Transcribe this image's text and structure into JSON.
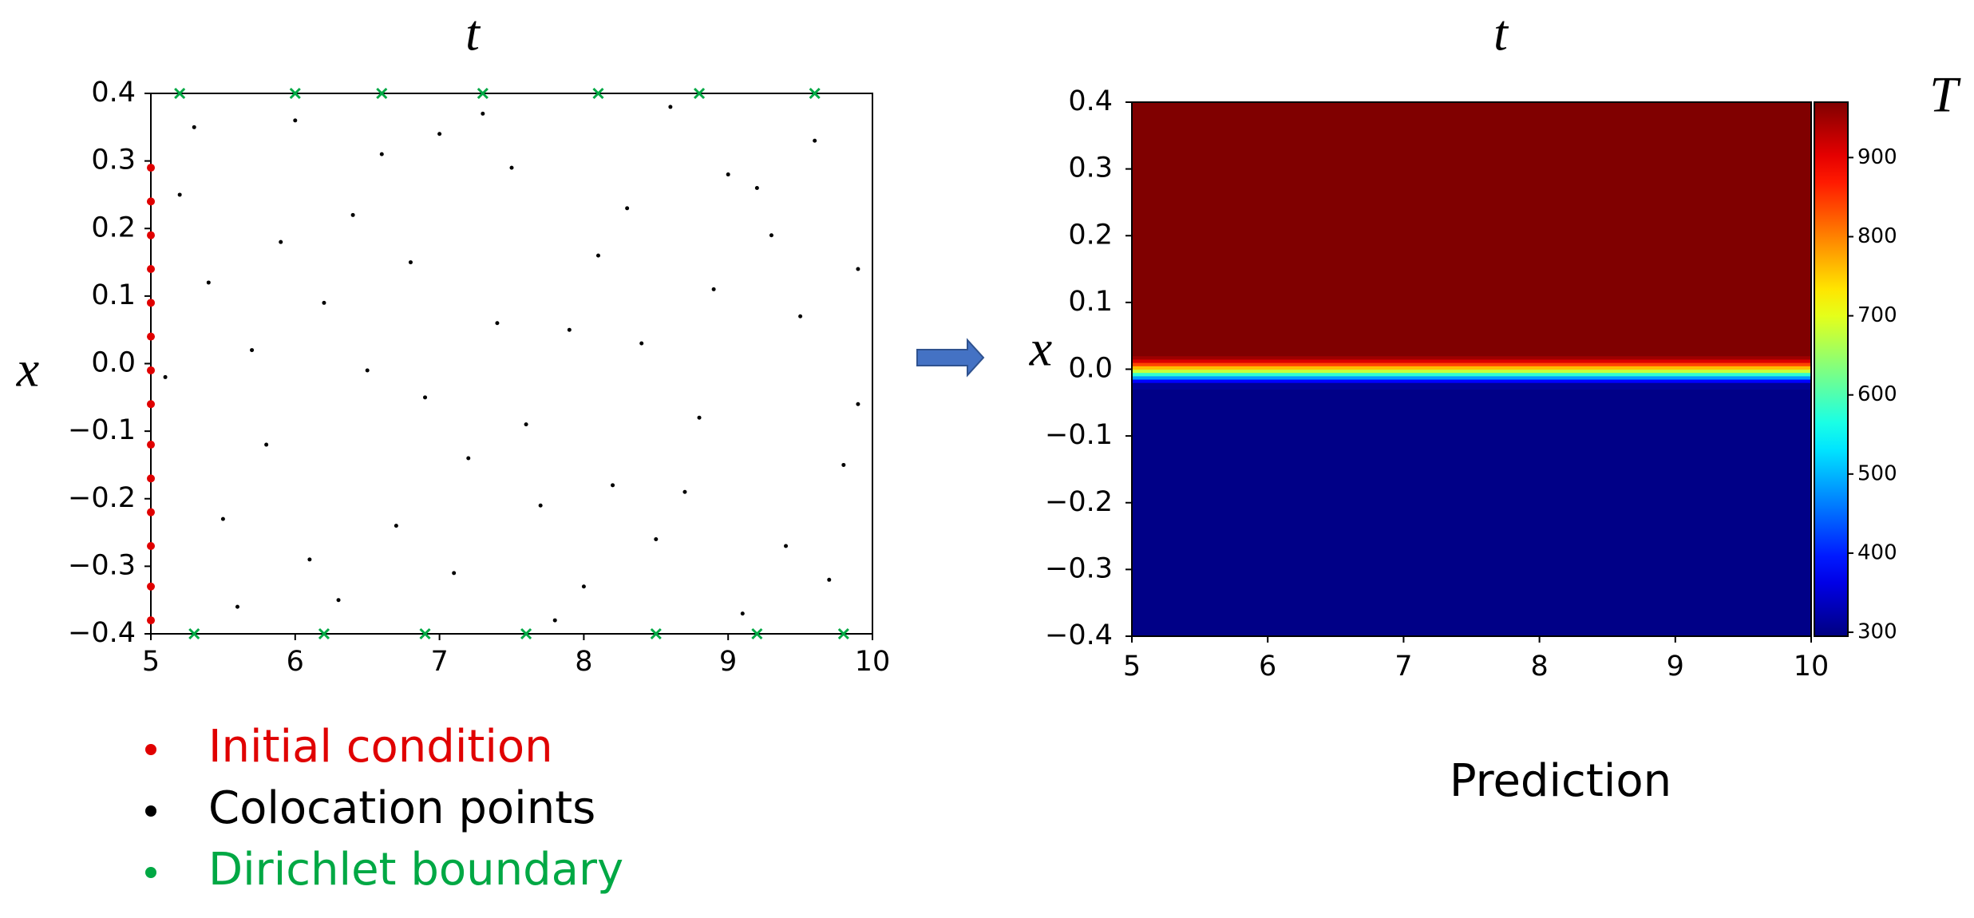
{
  "chart_data": [
    {
      "type": "scatter",
      "xlabel": "t",
      "ylabel": "x",
      "xlim": [
        5,
        10
      ],
      "ylim": [
        -0.4,
        0.4
      ],
      "xticks": [
        5,
        6,
        7,
        8,
        9,
        10
      ],
      "yticks": [
        {
          "value": -0.4,
          "label": "−0.4"
        },
        {
          "value": -0.3,
          "label": "−0.3"
        },
        {
          "value": -0.2,
          "label": "−0.2"
        },
        {
          "value": -0.1,
          "label": "−0.1"
        },
        {
          "value": 0,
          "label": "0.0"
        },
        0.1,
        0.2,
        0.3,
        0.4
      ],
      "series": [
        {
          "name": "Initial condition",
          "color": "#e00000",
          "marker": "o",
          "x": [
            5,
            5,
            5,
            5,
            5,
            5,
            5,
            5,
            5,
            5,
            5,
            5,
            5,
            5
          ],
          "values": [
            -0.38,
            -0.33,
            -0.27,
            -0.22,
            -0.17,
            -0.12,
            -0.06,
            -0.01,
            0.04,
            0.09,
            0.14,
            0.19,
            0.24,
            0.29
          ]
        },
        {
          "name": "Colocation points",
          "color": "#000000",
          "marker": "o",
          "x": [
            5.3,
            5.8,
            6.4,
            7.1,
            7.9,
            8.6,
            9.4,
            9.9,
            5.6,
            6.2,
            6.9,
            7.5,
            8.2,
            8.9,
            9.6,
            5.1,
            5.9,
            6.7,
            7.3,
            8.0,
            8.8,
            9.2,
            9.8,
            5.4,
            6.1,
            6.6,
            7.7,
            8.4,
            9.1,
            9.5,
            5.2,
            6.0,
            6.8,
            7.2,
            7.8,
            8.5,
            9.3,
            9.7,
            5.7,
            6.3,
            7.0,
            7.6,
            8.3,
            8.7,
            9.0,
            5.5,
            6.5,
            7.4,
            8.1,
            9.9
          ],
          "values": [
            0.35,
            -0.12,
            0.22,
            -0.31,
            0.05,
            0.38,
            -0.27,
            0.14,
            -0.36,
            0.09,
            -0.05,
            0.29,
            -0.18,
            0.11,
            0.33,
            -0.02,
            0.18,
            -0.24,
            0.37,
            -0.33,
            -0.08,
            0.26,
            -0.15,
            0.12,
            -0.29,
            0.31,
            -0.21,
            0.03,
            -0.37,
            0.07,
            0.25,
            0.36,
            0.15,
            -0.14,
            -0.38,
            -0.26,
            0.19,
            -0.32,
            0.02,
            -0.35,
            0.34,
            -0.09,
            0.23,
            -0.19,
            0.28,
            -0.23,
            -0.01,
            0.06,
            0.16,
            -0.06
          ]
        },
        {
          "name": "Dirichlet boundary",
          "color": "#00a844",
          "marker": "x",
          "x": [
            5.2,
            6.0,
            6.6,
            7.3,
            8.1,
            8.8,
            9.6,
            5.3,
            6.2,
            6.9,
            7.6,
            8.5,
            9.2,
            9.8
          ],
          "values": [
            0.4,
            0.4,
            0.4,
            0.4,
            0.4,
            0.4,
            0.4,
            -0.4,
            -0.4,
            -0.4,
            -0.4,
            -0.4,
            -0.4,
            -0.4
          ]
        }
      ]
    },
    {
      "type": "heatmap",
      "xlabel": "t",
      "ylabel": "x",
      "colorbar_label": "T",
      "caption": "Prediction",
      "colormap": "jet",
      "clim": [
        295,
        970
      ],
      "cticks": [
        300,
        400,
        500,
        600,
        700,
        800,
        900
      ],
      "xlim": [
        5,
        10
      ],
      "ylim": [
        -0.4,
        0.4
      ],
      "xticks": [
        5,
        6,
        7,
        8,
        9,
        10
      ],
      "yticks": [
        {
          "value": -0.4,
          "label": "−0.4"
        },
        {
          "value": -0.3,
          "label": "−0.3"
        },
        {
          "value": -0.2,
          "label": "−0.2"
        },
        {
          "value": -0.1,
          "label": "−0.1"
        },
        {
          "value": 0,
          "label": "0.0"
        },
        0.1,
        0.2,
        0.3,
        0.4
      ],
      "y": [
        -0.4,
        -0.03,
        -0.02,
        -0.015,
        -0.01,
        -0.005,
        0,
        0.005,
        0.01,
        0.015,
        0.02
      ],
      "values": [
        300,
        310,
        380,
        480,
        580,
        680,
        760,
        840,
        910,
        950,
        970
      ]
    }
  ]
}
